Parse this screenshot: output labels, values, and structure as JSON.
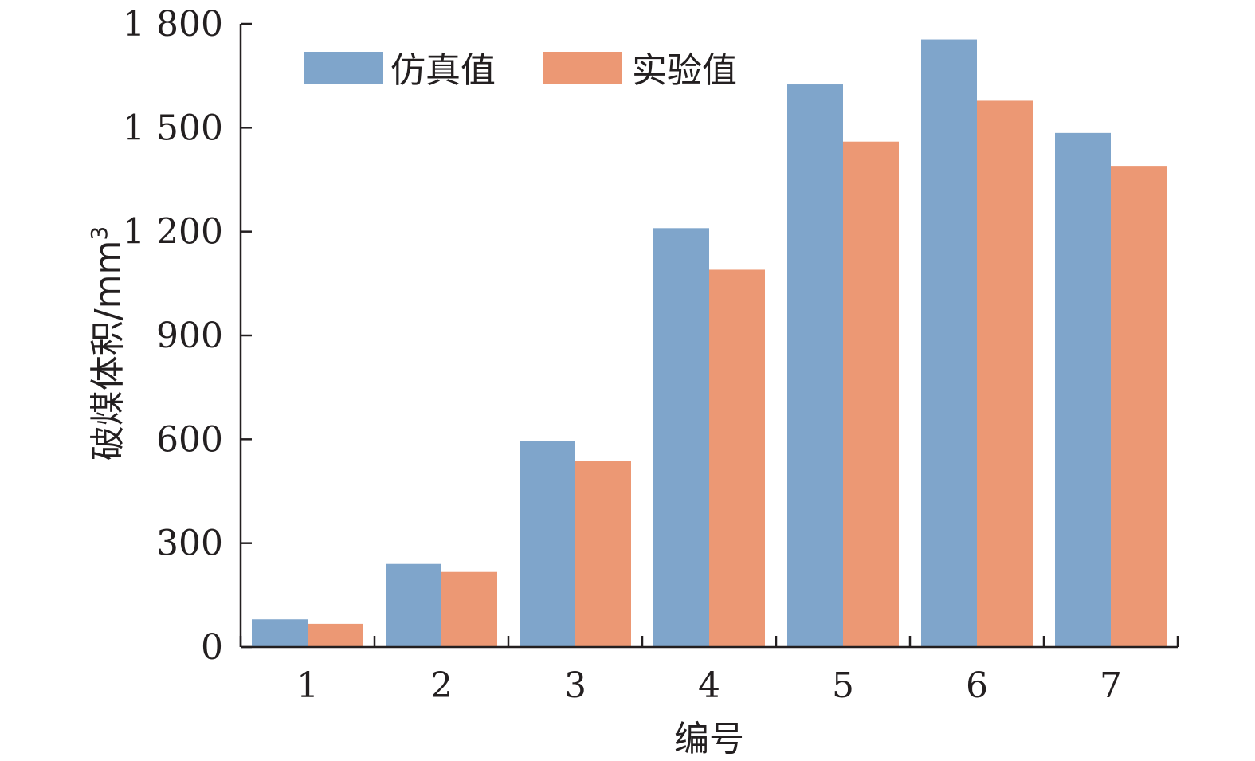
{
  "chart_data": {
    "type": "bar",
    "xlabel": "编号",
    "ylabel": "破煤体积/mm",
    "ylabel_sup": "3",
    "categories": [
      "1",
      "2",
      "3",
      "4",
      "5",
      "6",
      "7"
    ],
    "ylim": [
      0,
      1800
    ],
    "yticks": [
      0,
      300,
      600,
      900,
      1200,
      1500,
      1800
    ],
    "ytick_labels": [
      "0",
      "300",
      "600",
      "900",
      "1 200",
      "1 500",
      "1 800"
    ],
    "legend_position": "top-left",
    "grid": false,
    "series": [
      {
        "name": "仿真值",
        "color": "#7fa5cb",
        "values": [
          80,
          240,
          595,
          1210,
          1625,
          1755,
          1485
        ]
      },
      {
        "name": "实验值",
        "color": "#ec9874",
        "values": [
          67,
          217,
          538,
          1090,
          1460,
          1578,
          1390
        ]
      }
    ]
  }
}
